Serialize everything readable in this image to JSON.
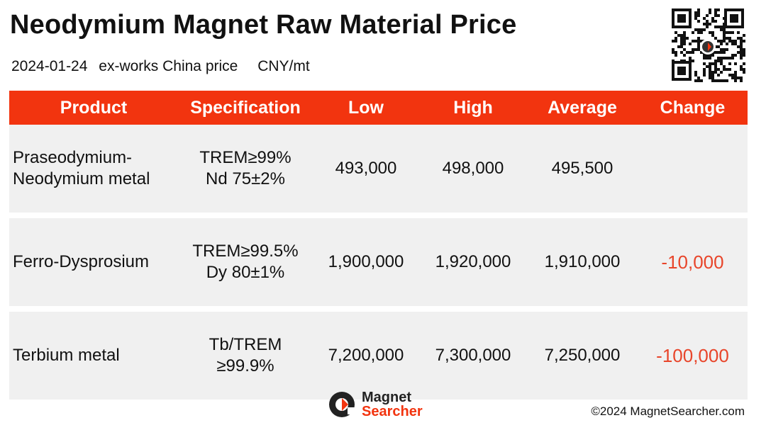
{
  "title": "Neodymium Magnet Raw Material Price",
  "subtitle": {
    "date": "2024-01-24",
    "basis": "ex-works China price",
    "unit": "CNY/mt"
  },
  "table": {
    "headers": [
      "Product",
      "Specification",
      "Low",
      "High",
      "Average",
      "Change"
    ],
    "rows": [
      {
        "product": [
          "Praseodymium-",
          "Neodymium metal"
        ],
        "spec": [
          "TREM≥99%",
          "Nd 75±2%"
        ],
        "low": "493,000",
        "high": "498,000",
        "average": "495,500",
        "change": ""
      },
      {
        "product": [
          "Ferro-Dysprosium"
        ],
        "spec": [
          "TREM≥99.5%",
          "Dy 80±1%"
        ],
        "low": "1,900,000",
        "high": "1,920,000",
        "average": "1,910,000",
        "change": "-10,000"
      },
      {
        "product": [
          "Terbium metal"
        ],
        "spec": [
          "Tb/TREM",
          "≥99.9%"
        ],
        "low": "7,200,000",
        "high": "7,300,000",
        "average": "7,250,000",
        "change": "-100,000"
      }
    ]
  },
  "footer": {
    "logo_line1": "Magnet",
    "logo_line2": "Searcher",
    "copyright": "©2024 MagnetSearcher.com"
  },
  "colors": {
    "header_bg": "#f2340f",
    "row_bg": "#f0f0f0",
    "change_negative": "#e8452a"
  },
  "icons": {
    "qr": "qr-code-icon",
    "logo": "magnet-searcher-logo-icon"
  }
}
